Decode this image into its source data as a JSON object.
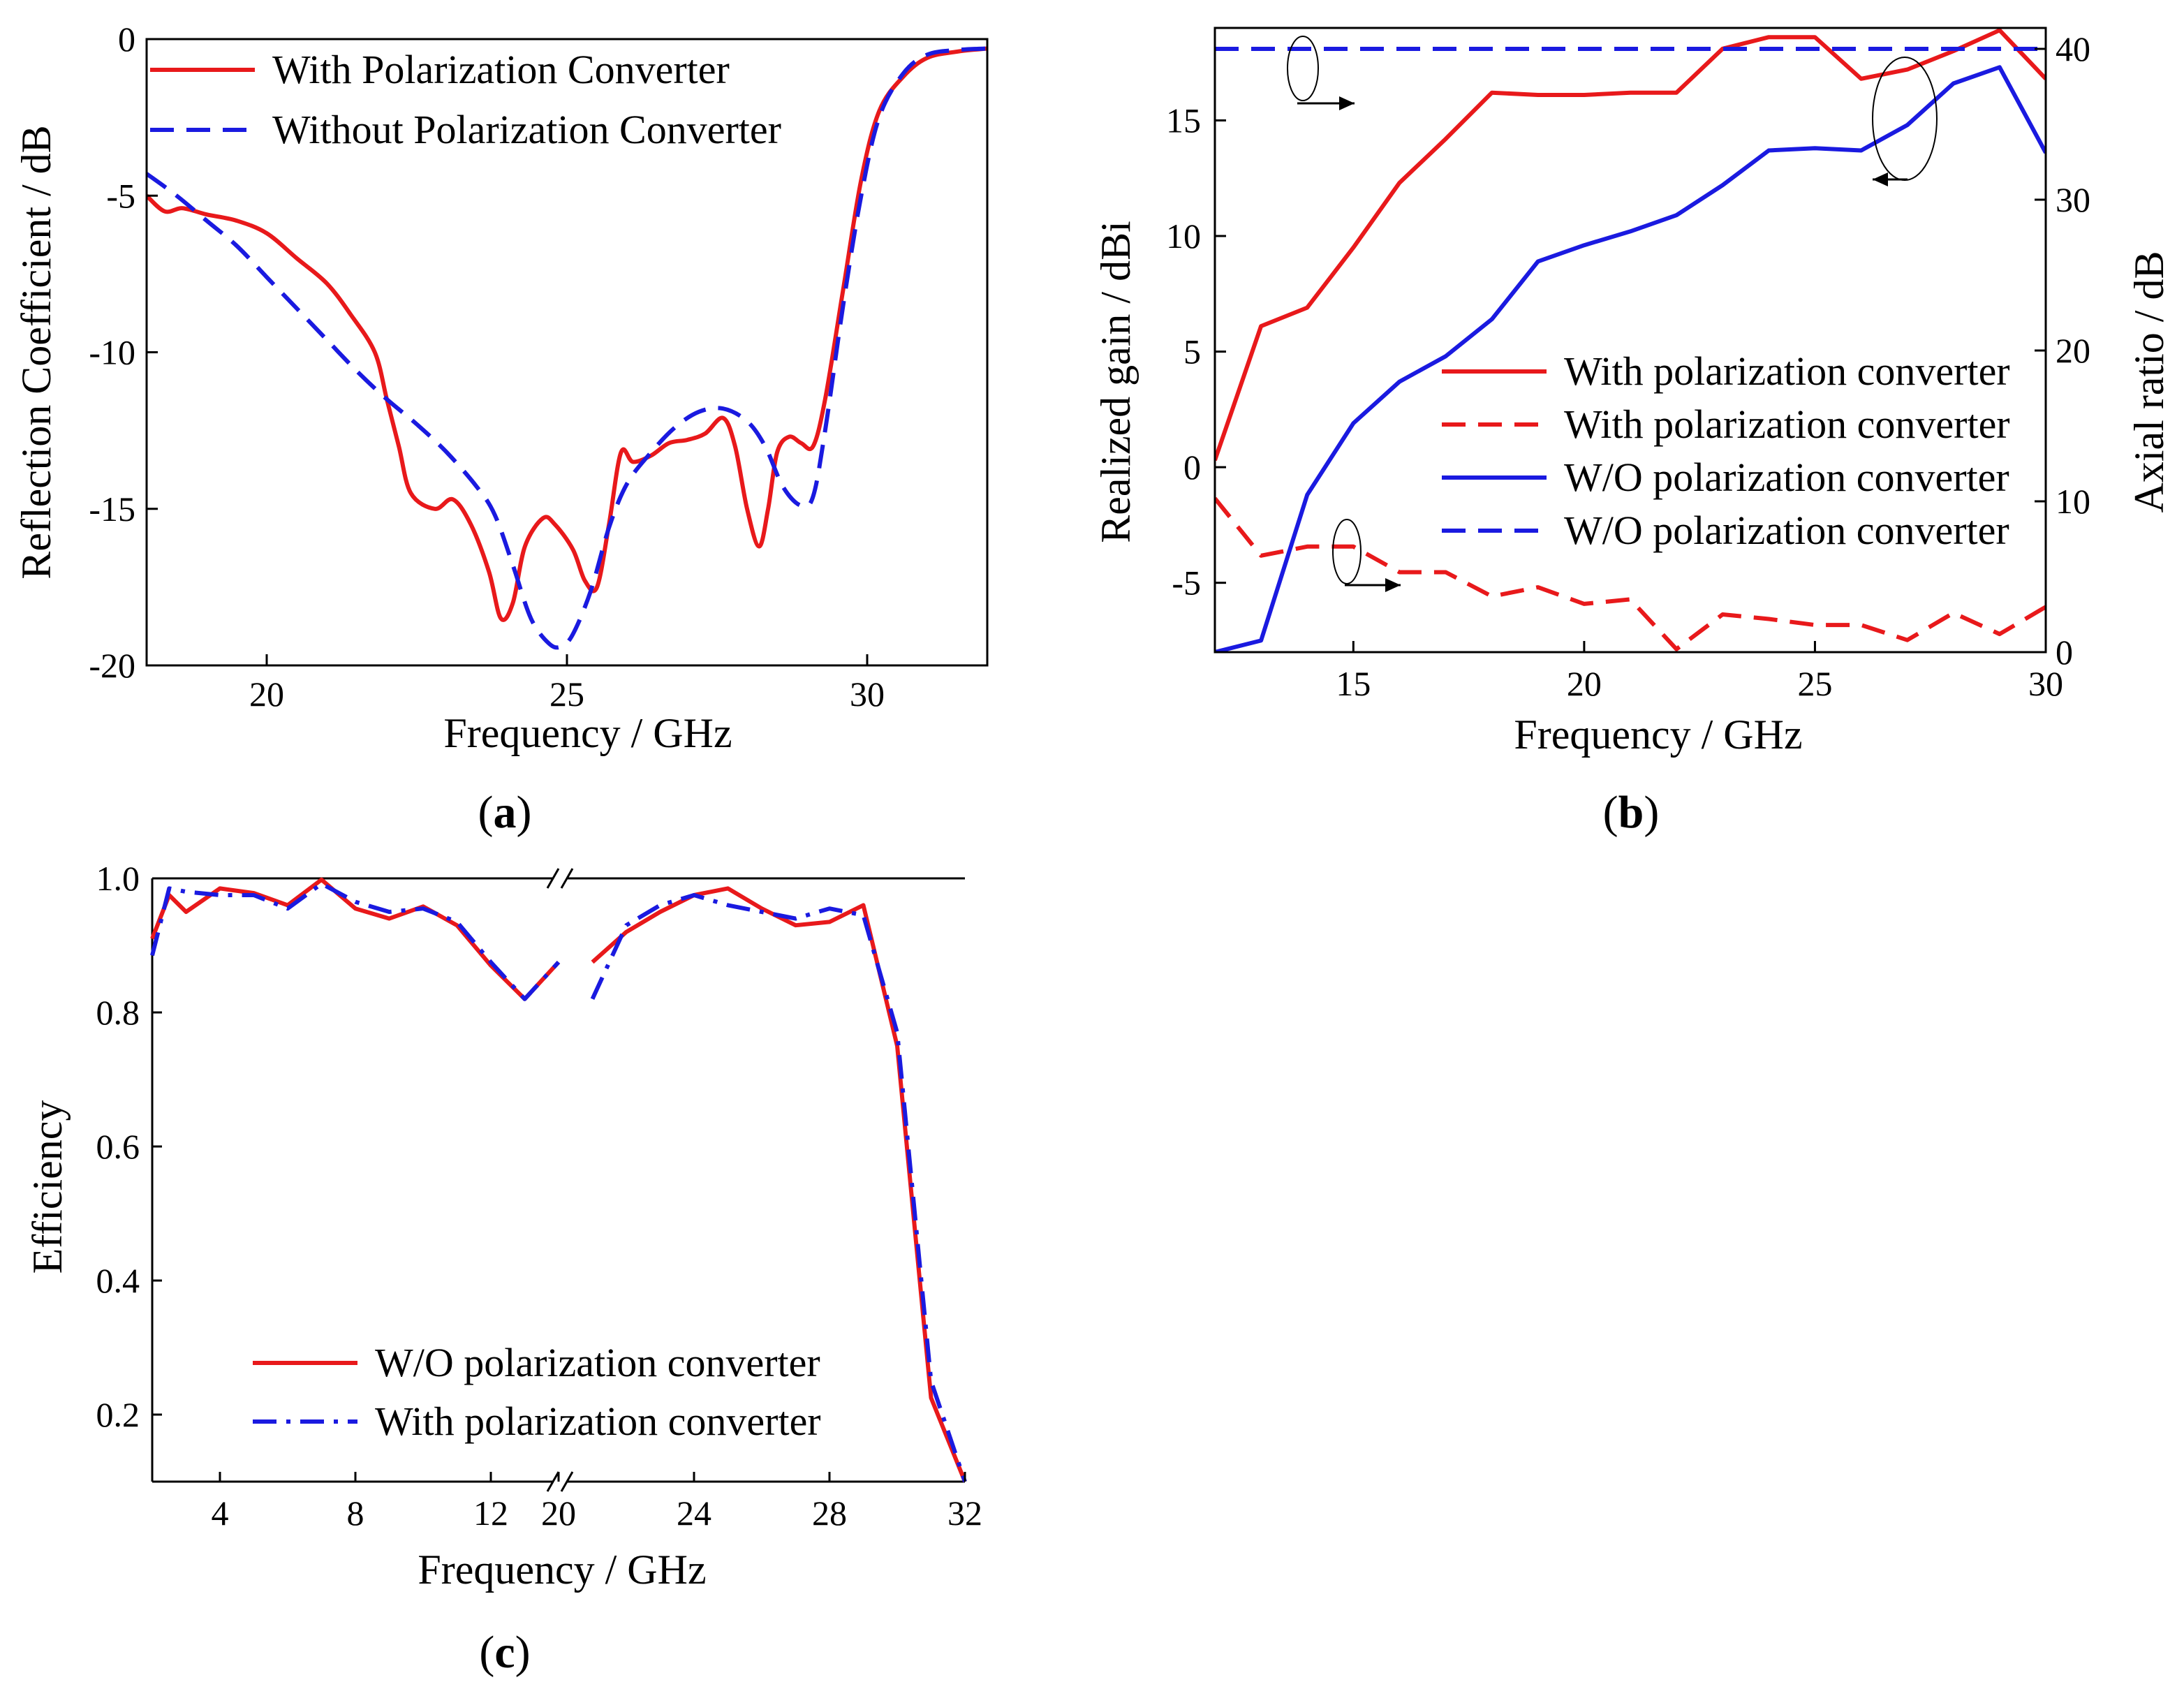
{
  "chart_data": [
    {
      "id": "a",
      "type": "line",
      "panel_label": "(a)",
      "panel_letter": "a",
      "xlabel": "Frequency / GHz",
      "ylabel": "Reflection Coefficient / dB",
      "xlim": [
        18,
        32
      ],
      "ylim": [
        -20,
        0
      ],
      "xticks": [
        20,
        25,
        30
      ],
      "yticks": [
        0,
        -5,
        -10,
        -15,
        -20
      ],
      "legend_position": "top-center",
      "series": [
        {
          "name": "With Polarization Converter",
          "color": "#e8191b",
          "style": "solid",
          "x": [
            18,
            18.3,
            18.6,
            19,
            19.5,
            20,
            20.5,
            21,
            21.4,
            21.8,
            22,
            22.2,
            22.4,
            22.8,
            23.1,
            23.4,
            23.7,
            23.9,
            24.1,
            24.3,
            24.6,
            24.8,
            25.1,
            25.3,
            25.5,
            25.7,
            25.9,
            26.1,
            26.4,
            26.7,
            27,
            27.3,
            27.6,
            27.8,
            28,
            28.2,
            28.35,
            28.5,
            28.7,
            28.9,
            29.1,
            29.3,
            29.6,
            29.9,
            30.2,
            30.6,
            31,
            31.5,
            32
          ],
          "y": [
            -5.0,
            -5.5,
            -5.4,
            -5.6,
            -5.8,
            -6.2,
            -7.0,
            -7.8,
            -8.8,
            -10.0,
            -11.5,
            -13.0,
            -14.5,
            -15.0,
            -14.7,
            -15.5,
            -17.0,
            -18.5,
            -18.0,
            -16.2,
            -15.3,
            -15.5,
            -16.3,
            -17.3,
            -17.5,
            -15.5,
            -13.2,
            -13.5,
            -13.3,
            -12.9,
            -12.8,
            -12.6,
            -12.1,
            -13.0,
            -15.0,
            -16.2,
            -15.0,
            -13.2,
            -12.7,
            -12.9,
            -13.0,
            -11.5,
            -8.0,
            -4.5,
            -2.3,
            -1.2,
            -0.6,
            -0.4,
            -0.3
          ]
        },
        {
          "name": "Without Polarization Converter",
          "color": "#1a1ae0",
          "style": "dashed",
          "x": [
            18,
            18.5,
            19,
            19.5,
            20,
            20.5,
            21,
            21.5,
            22,
            22.5,
            23,
            23.5,
            23.8,
            24.1,
            24.4,
            24.7,
            24.9,
            25.1,
            25.4,
            25.7,
            26,
            26.4,
            26.8,
            27.2,
            27.6,
            28,
            28.3,
            28.6,
            28.9,
            29.1,
            29.3,
            29.6,
            29.9,
            30.2,
            30.6,
            31,
            31.5,
            32
          ],
          "y": [
            -4.3,
            -5.0,
            -5.8,
            -6.6,
            -7.6,
            -8.6,
            -9.6,
            -10.6,
            -11.5,
            -12.3,
            -13.2,
            -14.3,
            -15.2,
            -16.8,
            -18.5,
            -19.3,
            -19.4,
            -19.0,
            -17.6,
            -15.6,
            -14.2,
            -13.2,
            -12.4,
            -11.9,
            -11.8,
            -12.2,
            -13.0,
            -14.3,
            -14.9,
            -14.6,
            -12.5,
            -8.5,
            -5.0,
            -2.5,
            -1.1,
            -0.5,
            -0.35,
            -0.3
          ]
        }
      ]
    },
    {
      "id": "b",
      "type": "line",
      "panel_label": "(b)",
      "panel_letter": "b",
      "xlabel": "Frequency / GHz",
      "ylabel_left": "Realized gain / dBi",
      "ylabel_right": "Axial ratio / dB",
      "xlim": [
        12,
        30
      ],
      "ylim_left": [
        -8,
        19
      ],
      "ylim_right": [
        0,
        40
      ],
      "xticks": [
        15,
        20,
        25,
        30
      ],
      "yticks_left": [
        15,
        10,
        5,
        0,
        -5
      ],
      "yticks_right": [
        40,
        30,
        20,
        10,
        0
      ],
      "legend_position": "center-right",
      "series": [
        {
          "name": "With polarization converter",
          "color": "#e8191b",
          "style": "solid",
          "axis": "left",
          "x": [
            12,
            13,
            14,
            15,
            16,
            17,
            18,
            19,
            20,
            21,
            22,
            23,
            24,
            25,
            26,
            27,
            28,
            29,
            30
          ],
          "y": [
            0.3,
            6.1,
            6.9,
            9.5,
            12.3,
            14.2,
            16.2,
            16.1,
            16.1,
            16.2,
            16.2,
            18.1,
            18.6,
            18.6,
            16.8,
            17.2,
            18.0,
            18.9,
            16.8
          ]
        },
        {
          "name": "With polarization converter",
          "color": "#e8191b",
          "style": "dashed",
          "axis": "right",
          "x": [
            12,
            13,
            14,
            15,
            16,
            17,
            18,
            19,
            20,
            21,
            22,
            23,
            24,
            25,
            26,
            27,
            28,
            29,
            30
          ],
          "y": [
            10.2,
            6.4,
            7.0,
            7.0,
            5.3,
            5.3,
            3.7,
            4.3,
            3.2,
            3.5,
            0.2,
            2.5,
            2.2,
            1.8,
            1.8,
            0.8,
            2.6,
            1.2,
            3.0
          ]
        },
        {
          "name": "W/O polarization converter",
          "color": "#1a1ae0",
          "style": "solid",
          "axis": "left",
          "x": [
            12,
            13,
            14,
            15,
            16,
            17,
            18,
            19,
            20,
            21,
            22,
            23,
            24,
            25,
            26,
            27,
            28,
            29,
            30
          ],
          "y": [
            -8.0,
            -7.5,
            -1.2,
            1.9,
            3.7,
            4.8,
            6.4,
            8.9,
            9.6,
            10.2,
            10.9,
            12.2,
            13.7,
            13.8,
            13.7,
            14.8,
            16.6,
            17.3,
            13.6
          ]
        },
        {
          "name": "W/O polarization converter",
          "color": "#1a1ae0",
          "style": "dashed",
          "axis": "right",
          "x": [
            12,
            30
          ],
          "y": [
            40,
            40
          ]
        }
      ],
      "annotations": [
        {
          "target": "right-axis",
          "near": "top-left"
        },
        {
          "target": "right-axis",
          "near": "bottom-left"
        },
        {
          "target": "left-axis",
          "near": "top-right"
        }
      ]
    },
    {
      "id": "c",
      "type": "line",
      "panel_label": "(c)",
      "panel_letter": "c",
      "xlabel": "Frequency / GHz",
      "ylabel": "Efficiency",
      "xlim": [
        2,
        32
      ],
      "x_break": [
        14,
        21
      ],
      "ylim": [
        0.1,
        1.0
      ],
      "xticks": [
        4,
        8,
        12,
        20,
        24,
        28,
        32
      ],
      "yticks": [
        1.0,
        0.8,
        0.6,
        0.4,
        0.2
      ],
      "ytick_labels": [
        "1.0",
        "0.8",
        "0.6",
        "0.4",
        "0.2"
      ],
      "legend_position": "bottom-left",
      "series": [
        {
          "name": "W/O polarization converter",
          "color": "#e8191b",
          "style": "solid",
          "segments": [
            {
              "x": [
                2,
                2.5,
                3,
                4,
                5,
                6,
                7,
                8,
                9,
                10,
                11,
                12,
                13,
                14
              ],
              "y": [
                0.91,
                0.975,
                0.95,
                0.985,
                0.978,
                0.96,
                0.998,
                0.955,
                0.94,
                0.958,
                0.93,
                0.87,
                0.82,
                0.875
              ]
            },
            {
              "x": [
                21,
                22,
                23,
                24,
                25,
                26,
                27,
                28,
                29,
                30,
                31,
                32
              ],
              "y": [
                0.875,
                0.92,
                0.95,
                0.975,
                0.985,
                0.955,
                0.93,
                0.935,
                0.96,
                0.75,
                0.225,
                0.1
              ]
            }
          ]
        },
        {
          "name": "With polarization converter",
          "color": "#1a1ae0",
          "style": "dashdot",
          "segments": [
            {
              "x": [
                2,
                2.5,
                3,
                4,
                5,
                6,
                7,
                8,
                9,
                10,
                11,
                12,
                13,
                14
              ],
              "y": [
                0.885,
                0.985,
                0.98,
                0.975,
                0.975,
                0.955,
                0.992,
                0.965,
                0.95,
                0.955,
                0.935,
                0.875,
                0.82,
                0.875
              ]
            },
            {
              "x": [
                21,
                22,
                23,
                24,
                25,
                26,
                27,
                28,
                29,
                30,
                31,
                32
              ],
              "y": [
                0.82,
                0.93,
                0.96,
                0.975,
                0.96,
                0.95,
                0.94,
                0.955,
                0.945,
                0.77,
                0.25,
                0.1
              ]
            }
          ]
        }
      ]
    }
  ]
}
